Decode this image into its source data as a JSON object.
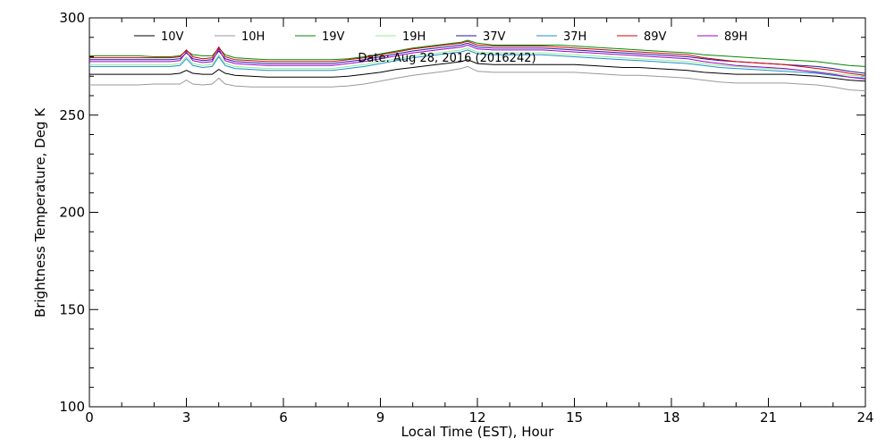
{
  "chart_data": {
    "type": "line",
    "annotation": "Date: Aug 28, 2016 (2016242)",
    "xlabel": "Local Time (EST), Hour",
    "ylabel": "Brightness Temperature, Deg K",
    "xlim": [
      0,
      24
    ],
    "ylim": [
      100,
      300
    ],
    "xticks": [
      0,
      3,
      6,
      9,
      12,
      15,
      18,
      21,
      24
    ],
    "yticks": [
      100,
      150,
      200,
      250,
      300
    ],
    "grid": false,
    "legend_position": "top",
    "x": [
      0,
      0.5,
      1,
      1.5,
      2,
      2.5,
      2.8,
      3,
      3.2,
      3.5,
      3.8,
      4,
      4.2,
      4.5,
      5,
      5.5,
      6,
      6.5,
      7,
      7.5,
      8,
      8.5,
      9,
      9.5,
      10,
      10.5,
      11,
      11.5,
      11.7,
      12,
      12.5,
      13,
      13.5,
      14,
      14.5,
      15,
      15.5,
      16,
      16.5,
      17,
      17.5,
      18,
      18.5,
      19,
      19.5,
      20,
      20.5,
      21,
      21.5,
      22,
      22.5,
      23,
      23.5,
      24
    ],
    "series": [
      {
        "name": "10V",
        "color": "#000000",
        "values": [
          271,
          271,
          271,
          271,
          271,
          271,
          271.5,
          273,
          271.5,
          271,
          271,
          273.5,
          271.5,
          270.5,
          270,
          269.5,
          269.5,
          269.5,
          269.5,
          269.5,
          270,
          271,
          272,
          273.5,
          274.5,
          275.5,
          276.5,
          277.5,
          278.5,
          276.5,
          276,
          276,
          276,
          276,
          276,
          276,
          275.5,
          275,
          274.5,
          274.5,
          274,
          273.5,
          273,
          272,
          271.5,
          271,
          271,
          271,
          271,
          270.5,
          270,
          269,
          268,
          267.5
        ]
      },
      {
        "name": "10H",
        "color": "#9a9a9a",
        "values": [
          265.5,
          265.5,
          265.5,
          265.5,
          266,
          266,
          266,
          268,
          266,
          265.5,
          266,
          269,
          266,
          265,
          264.5,
          264.5,
          264.5,
          264.5,
          264.5,
          264.5,
          265,
          266,
          267.5,
          269,
          270.5,
          271.5,
          272.5,
          274,
          275,
          272.5,
          272,
          272,
          272,
          272,
          272,
          272,
          271.5,
          271,
          270.5,
          270.5,
          270,
          269.5,
          269,
          268,
          267,
          266.5,
          266.5,
          266.5,
          266.5,
          266,
          265.5,
          264.5,
          263,
          262.5
        ]
      },
      {
        "name": "19V",
        "color": "#008a00",
        "values": [
          280.5,
          280.5,
          280.5,
          280.5,
          280,
          280,
          280.5,
          283,
          281,
          280.5,
          280.5,
          284.5,
          281,
          279.5,
          279,
          278.5,
          278.5,
          278.5,
          278.5,
          278.5,
          279,
          280,
          281.5,
          283,
          284.5,
          285.5,
          286.5,
          287.5,
          288.5,
          287,
          286,
          286,
          286,
          286,
          286,
          285.5,
          285,
          284.5,
          284,
          283.5,
          283,
          282.5,
          282,
          281,
          280.5,
          280,
          279.5,
          279,
          278.5,
          278,
          277.5,
          276.5,
          275.5,
          275
        ]
      },
      {
        "name": "19H",
        "color": "#90ee90",
        "values": [
          276,
          276,
          276,
          276,
          276,
          276,
          276.5,
          280,
          276.5,
          275.5,
          276,
          281,
          276.5,
          275,
          274.5,
          274,
          274,
          274,
          274,
          274,
          275,
          276,
          277.5,
          279,
          280.5,
          281.5,
          282.5,
          283.5,
          284.5,
          282.5,
          282,
          282,
          282,
          282,
          281.5,
          281,
          280.5,
          280,
          279.5,
          279,
          278.5,
          278,
          277.5,
          276.5,
          275.5,
          275,
          274.5,
          274,
          273.5,
          273,
          272.5,
          271.5,
          270.5,
          270
        ]
      },
      {
        "name": "37V",
        "color": "#1a1aa8",
        "values": [
          278.5,
          278.5,
          278.5,
          278.5,
          278.5,
          278.5,
          279,
          282,
          279,
          278,
          278.5,
          283,
          279,
          277.5,
          277,
          276.5,
          276.5,
          276.5,
          276.5,
          276.5,
          277.5,
          278.5,
          280,
          281.5,
          283,
          284,
          285,
          286,
          287,
          285,
          284.5,
          284.5,
          284.5,
          284.5,
          284,
          283.5,
          283,
          282.5,
          282,
          281.5,
          281,
          280.5,
          280,
          279,
          278,
          277.5,
          277,
          276.5,
          276,
          275.5,
          275,
          274,
          272.5,
          271.5
        ]
      },
      {
        "name": "37H",
        "color": "#1c8fd0",
        "values": [
          275,
          275,
          275,
          275,
          275,
          275,
          275.5,
          279,
          275.5,
          274.5,
          275,
          280,
          275.5,
          274,
          273.5,
          273,
          273,
          273,
          273,
          273,
          274,
          275,
          276.5,
          278,
          279.5,
          280.5,
          281.5,
          282.5,
          283.5,
          281.5,
          281,
          281,
          281,
          281,
          280.5,
          280,
          279.5,
          279,
          278.5,
          278,
          277.5,
          277,
          276.5,
          275.5,
          274.5,
          274,
          273.5,
          273,
          272.5,
          272,
          271.5,
          270.5,
          269.5,
          269
        ]
      },
      {
        "name": "89V",
        "color": "#d40000",
        "values": [
          279.5,
          279.5,
          279.5,
          279.5,
          279.5,
          279.5,
          280,
          283.5,
          280,
          279,
          279.5,
          285,
          280,
          278.5,
          278,
          277.5,
          277.5,
          277.5,
          277.5,
          277.5,
          278.5,
          279.5,
          281,
          282.5,
          284,
          285,
          286,
          287,
          288,
          286,
          285.5,
          285.5,
          285.5,
          285.5,
          285,
          284.5,
          284,
          283.5,
          283,
          282.5,
          282,
          281.5,
          281,
          279.5,
          278.5,
          277.5,
          277,
          276.5,
          276,
          275,
          274,
          273,
          271.5,
          270.5
        ]
      },
      {
        "name": "89H",
        "color": "#a000c8",
        "values": [
          277.5,
          277.5,
          277.5,
          277.5,
          277.5,
          277.5,
          278,
          282.5,
          278,
          277,
          277.5,
          284,
          278,
          276.5,
          276,
          275.5,
          275.5,
          275.5,
          275.5,
          275.5,
          276.5,
          277.5,
          279,
          280.5,
          282,
          283,
          284,
          285,
          286,
          284,
          283.5,
          283.5,
          283.5,
          283.5,
          283,
          282.5,
          282,
          281.5,
          281,
          280.5,
          280,
          279.5,
          279,
          277.5,
          276.5,
          275.5,
          275,
          274.5,
          274,
          273,
          272,
          271,
          269.5,
          268.5
        ]
      }
    ]
  }
}
